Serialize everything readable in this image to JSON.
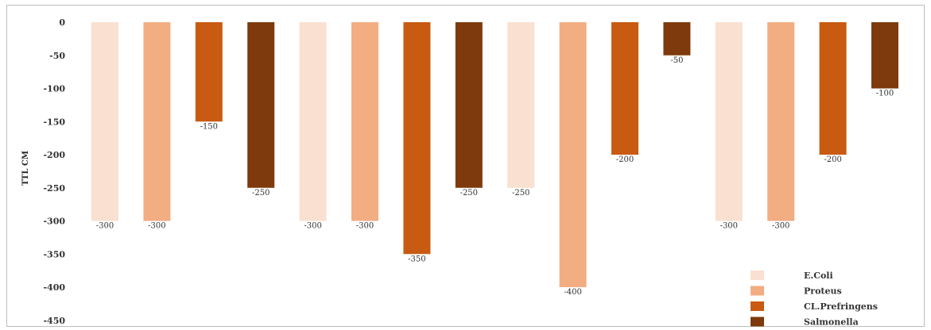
{
  "chart_data": {
    "type": "bar",
    "title": "",
    "xlabel": "",
    "ylabel": "TTL CM",
    "ylim": [
      -450,
      0
    ],
    "yticks": [
      0,
      -50,
      -100,
      -150,
      -200,
      -250,
      -300,
      -350,
      -400,
      -450
    ],
    "grid": false,
    "legend_position": "bottom-right",
    "bars": [
      {
        "series": "E.Coli",
        "value": -300,
        "label": "-300"
      },
      {
        "series": "Proteus",
        "value": -300,
        "label": "-300"
      },
      {
        "series": "CL.Prefringens",
        "value": -150,
        "label": "-150"
      },
      {
        "series": "Salmonella",
        "value": -250,
        "label": "-250"
      },
      {
        "series": "E.Coli",
        "value": -300,
        "label": "-300"
      },
      {
        "series": "Proteus",
        "value": -300,
        "label": "-300"
      },
      {
        "series": "CL.Prefringens",
        "value": -350,
        "label": "-350"
      },
      {
        "series": "Salmonella",
        "value": -250,
        "label": "-250"
      },
      {
        "series": "E.Coli",
        "value": -250,
        "label": "-250"
      },
      {
        "series": "Proteus",
        "value": -400,
        "label": "-400"
      },
      {
        "series": "CL.Prefringens",
        "value": -200,
        "label": "-200"
      },
      {
        "series": "Salmonella",
        "value": -50,
        "label": "-50"
      },
      {
        "series": "E.Coli",
        "value": -300,
        "label": "-300"
      },
      {
        "series": "Proteus",
        "value": -300,
        "label": "-300"
      },
      {
        "series": "CL.Prefringens",
        "value": -200,
        "label": "-200"
      },
      {
        "series": "Salmonella",
        "value": -100,
        "label": "-100"
      }
    ],
    "series": [
      {
        "name": "E.Coli",
        "color": "#f9e0d0"
      },
      {
        "name": "Proteus",
        "color": "#f2ad82"
      },
      {
        "name": "CL.Prefringens",
        "color": "#c85a12"
      },
      {
        "name": "Salmonella",
        "color": "#7e3a0c"
      }
    ]
  }
}
